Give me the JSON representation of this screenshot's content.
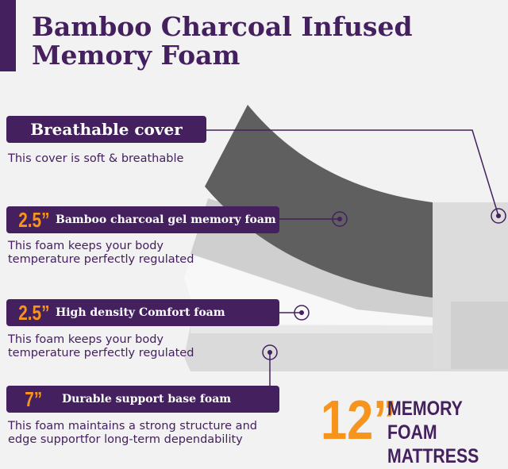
{
  "title": [
    "Bamboo Charcoal Infused",
    "Memory Foam"
  ],
  "layers": [
    {
      "thickness": "",
      "label": "Breathable cover",
      "description": [
        "This cover is soft & breathable"
      ]
    },
    {
      "thickness": "2.5”",
      "label": "Bamboo charcoal gel  memory foam",
      "description": [
        "This foam keeps your body",
        "temperature perfectly regulated"
      ]
    },
    {
      "thickness": "2.5”",
      "label": "High density Comfort foam",
      "description": [
        "This foam keeps your body",
        "temperature perfectly regulated"
      ]
    },
    {
      "thickness": "7”",
      "label": "Durable support base foam",
      "description": [
        "This foam maintains a strong structure and",
        "edge supportfor long-term dependability"
      ]
    }
  ],
  "badge": {
    "size": "12”",
    "line1": "MEMORY FOAM",
    "line2": "MATTRESS"
  },
  "colors": {
    "purple": "#44205e",
    "orange": "#f7941d"
  }
}
